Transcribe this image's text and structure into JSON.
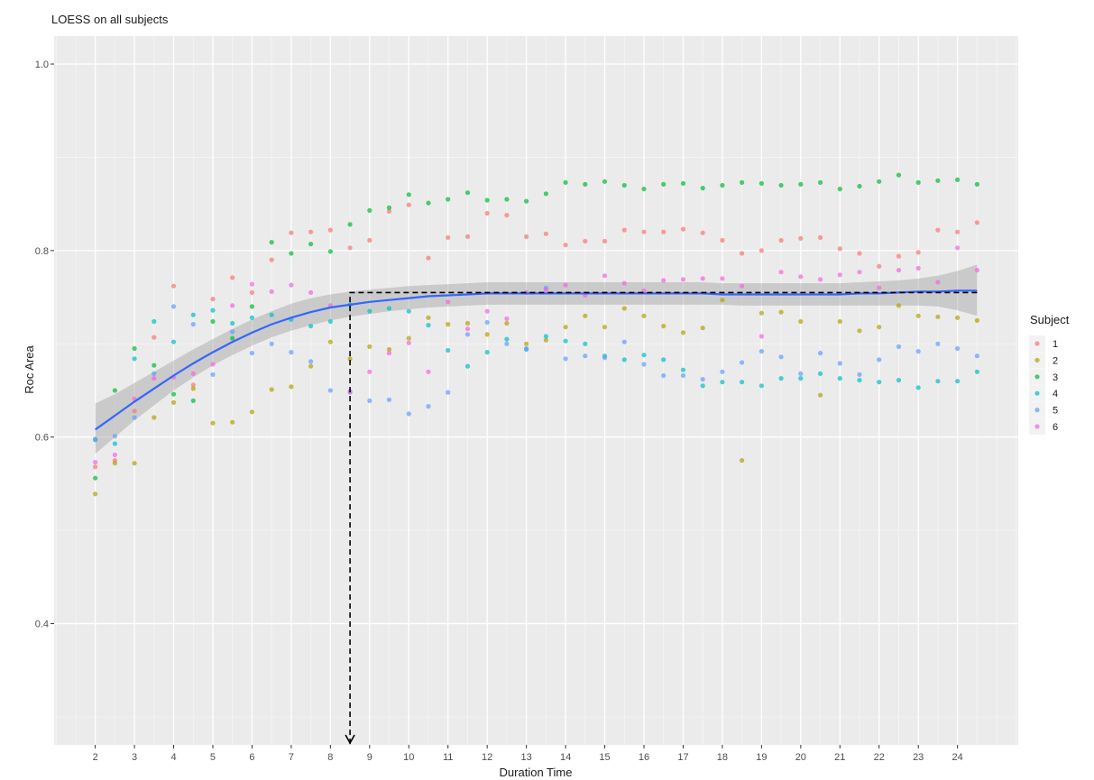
{
  "chart_data": {
    "type": "scatter",
    "title": "LOESS on all subjects",
    "xlabel": "Duration Time",
    "ylabel": "Roc Area",
    "xlim": [
      0.95,
      25.55
    ],
    "ylim": [
      0.27,
      1.03
    ],
    "x_ticks": [
      2,
      3,
      4,
      5,
      6,
      7,
      8,
      9,
      10,
      11,
      12,
      13,
      14,
      15,
      16,
      17,
      18,
      19,
      20,
      21,
      22,
      23,
      24
    ],
    "y_ticks": [
      0.4,
      0.6,
      0.8,
      1.0
    ],
    "y_tick_labels": [
      "0.4",
      "0.6",
      "0.8",
      "1.0"
    ],
    "grid": true,
    "legend_title": "Subject",
    "legend_position": "right",
    "x": [
      2,
      2.5,
      3,
      3.5,
      4,
      4.5,
      5,
      5.5,
      6,
      6.5,
      7,
      7.5,
      8,
      8.5,
      9,
      9.5,
      10,
      10.5,
      11,
      11.5,
      12,
      12.5,
      13,
      13.5,
      14,
      14.5,
      15,
      15.5,
      16,
      16.5,
      17,
      17.5,
      18,
      18.5,
      19,
      19.5,
      20,
      20.5,
      21,
      21.5,
      22,
      22.5,
      23,
      23.5,
      24,
      24.5
    ],
    "series": [
      {
        "name": "1",
        "color": "#F8766D",
        "values": [
          0.568,
          0.575,
          0.628,
          0.707,
          0.762,
          0.656,
          0.748,
          0.771,
          0.755,
          0.79,
          0.819,
          0.82,
          0.822,
          0.803,
          0.811,
          0.842,
          0.849,
          0.792,
          0.814,
          0.815,
          0.84,
          0.838,
          0.815,
          0.818,
          0.806,
          0.81,
          0.81,
          0.822,
          0.82,
          0.82,
          0.823,
          0.819,
          0.811,
          0.797,
          0.8,
          0.811,
          0.813,
          0.814,
          0.802,
          0.797,
          0.783,
          0.794,
          0.798,
          0.822,
          0.82,
          0.83
        ]
      },
      {
        "name": "2",
        "color": "#B79F00",
        "values": [
          0.539,
          0.572,
          0.572,
          0.621,
          0.637,
          0.652,
          0.615,
          0.616,
          0.627,
          0.651,
          0.654,
          0.676,
          0.702,
          0.684,
          0.697,
          0.694,
          0.706,
          0.728,
          0.721,
          0.722,
          0.71,
          0.722,
          0.7,
          0.704,
          0.718,
          0.73,
          0.718,
          0.738,
          0.73,
          0.719,
          0.712,
          0.717,
          0.747,
          0.575,
          0.733,
          0.734,
          0.724,
          0.645,
          0.724,
          0.714,
          0.718,
          0.741,
          0.73,
          0.729,
          0.728,
          0.725
        ]
      },
      {
        "name": "3",
        "color": "#00BA38",
        "values": [
          0.556,
          0.65,
          0.695,
          0.677,
          0.646,
          0.639,
          0.724,
          0.706,
          0.74,
          0.809,
          0.797,
          0.807,
          0.799,
          0.828,
          0.843,
          0.846,
          0.86,
          0.851,
          0.855,
          0.862,
          0.854,
          0.855,
          0.853,
          0.861,
          0.873,
          0.871,
          0.874,
          0.87,
          0.866,
          0.871,
          0.872,
          0.867,
          0.87,
          0.873,
          0.872,
          0.87,
          0.871,
          0.873,
          0.866,
          0.869,
          0.874,
          0.881,
          0.873,
          0.875,
          0.876,
          0.871
        ]
      },
      {
        "name": "4",
        "color": "#00BFC4",
        "values": [
          0.597,
          0.593,
          0.684,
          0.724,
          0.702,
          0.731,
          0.736,
          0.722,
          0.728,
          0.731,
          0.726,
          0.719,
          0.724,
          0.742,
          0.735,
          0.738,
          0.735,
          0.72,
          0.693,
          0.676,
          0.691,
          0.705,
          0.694,
          0.708,
          0.703,
          0.7,
          0.687,
          0.683,
          0.688,
          0.683,
          0.672,
          0.655,
          0.659,
          0.659,
          0.655,
          0.663,
          0.663,
          0.668,
          0.663,
          0.661,
          0.659,
          0.661,
          0.653,
          0.66,
          0.66,
          0.67
        ]
      },
      {
        "name": "5",
        "color": "#619CFF",
        "values": [
          0.598,
          0.601,
          0.621,
          0.668,
          0.74,
          0.721,
          0.667,
          0.713,
          0.69,
          0.7,
          0.691,
          0.681,
          0.65,
          0.648,
          0.639,
          0.64,
          0.625,
          0.633,
          0.648,
          0.71,
          0.723,
          0.7,
          0.695,
          0.76,
          0.684,
          0.687,
          0.685,
          0.702,
          0.678,
          0.666,
          0.666,
          0.662,
          0.67,
          0.68,
          0.692,
          0.686,
          0.668,
          0.69,
          0.679,
          0.667,
          0.683,
          0.697,
          0.692,
          0.7,
          0.695,
          0.687
        ]
      },
      {
        "name": "6",
        "color": "#F564E3",
        "values": [
          0.573,
          0.581,
          0.641,
          0.663,
          0.664,
          0.668,
          0.678,
          0.741,
          0.764,
          0.756,
          0.763,
          0.755,
          0.741,
          0.649,
          0.67,
          0.69,
          0.701,
          0.67,
          0.745,
          0.716,
          0.735,
          0.727,
          0.755,
          0.758,
          0.763,
          0.752,
          0.773,
          0.765,
          0.757,
          0.768,
          0.769,
          0.77,
          0.77,
          0.762,
          0.708,
          0.777,
          0.772,
          0.769,
          0.774,
          0.777,
          0.76,
          0.779,
          0.781,
          0.766,
          0.803,
          0.779
        ]
      }
    ],
    "loess_fit": {
      "color": "#3366FF",
      "x": [
        2,
        2.5,
        3,
        3.5,
        4,
        4.5,
        5,
        5.5,
        6,
        6.5,
        7,
        7.5,
        8,
        8.5,
        9,
        9.5,
        10,
        10.5,
        11,
        11.5,
        12,
        12.5,
        13,
        13.5,
        14,
        14.5,
        15,
        15.5,
        16,
        16.5,
        17,
        17.5,
        18,
        18.5,
        19,
        19.5,
        20,
        20.5,
        21,
        21.5,
        22,
        22.5,
        23,
        23.5,
        24,
        24.5
      ],
      "y": [
        0.608,
        0.623,
        0.638,
        0.652,
        0.666,
        0.679,
        0.691,
        0.702,
        0.712,
        0.721,
        0.728,
        0.734,
        0.739,
        0.742,
        0.745,
        0.747,
        0.749,
        0.751,
        0.752,
        0.753,
        0.754,
        0.754,
        0.754,
        0.754,
        0.754,
        0.754,
        0.754,
        0.754,
        0.754,
        0.754,
        0.754,
        0.754,
        0.753,
        0.753,
        0.753,
        0.753,
        0.753,
        0.753,
        0.753,
        0.754,
        0.754,
        0.755,
        0.756,
        0.756,
        0.757,
        0.757
      ],
      "lower": [
        0.582,
        0.6,
        0.618,
        0.634,
        0.65,
        0.664,
        0.677,
        0.688,
        0.698,
        0.707,
        0.714,
        0.72,
        0.725,
        0.729,
        0.732,
        0.735,
        0.737,
        0.739,
        0.74,
        0.741,
        0.742,
        0.742,
        0.742,
        0.742,
        0.742,
        0.742,
        0.742,
        0.742,
        0.742,
        0.742,
        0.742,
        0.742,
        0.742,
        0.741,
        0.741,
        0.741,
        0.741,
        0.741,
        0.741,
        0.741,
        0.741,
        0.741,
        0.741,
        0.74,
        0.736,
        0.73
      ],
      "upper": [
        0.636,
        0.646,
        0.658,
        0.67,
        0.682,
        0.694,
        0.705,
        0.716,
        0.726,
        0.735,
        0.743,
        0.749,
        0.753,
        0.756,
        0.758,
        0.76,
        0.762,
        0.763,
        0.764,
        0.765,
        0.766,
        0.766,
        0.766,
        0.766,
        0.766,
        0.766,
        0.766,
        0.766,
        0.766,
        0.766,
        0.766,
        0.766,
        0.765,
        0.765,
        0.765,
        0.765,
        0.765,
        0.765,
        0.765,
        0.766,
        0.767,
        0.768,
        0.77,
        0.773,
        0.778,
        0.785
      ]
    },
    "annotation": {
      "type": "dashed-arrow",
      "color": "#000000",
      "points": [
        [
          24.5,
          0.755
        ],
        [
          8.5,
          0.755
        ],
        [
          8.5,
          0.27
        ]
      ]
    }
  }
}
